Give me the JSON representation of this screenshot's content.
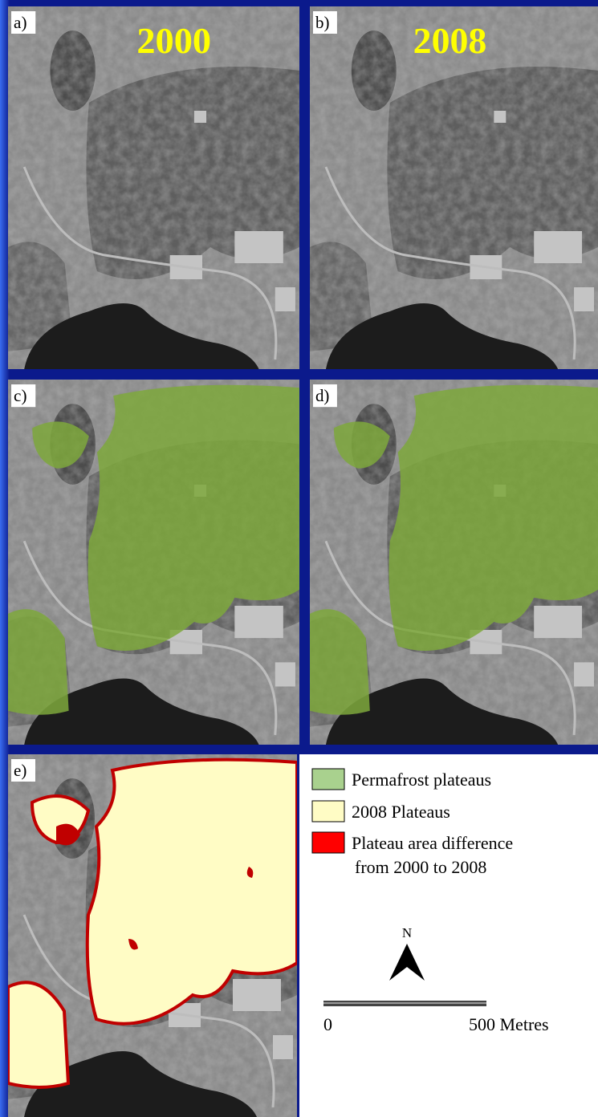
{
  "panels": [
    {
      "label": "a)",
      "year": "2000"
    },
    {
      "label": "b)",
      "year": "2008"
    },
    {
      "label": "c)"
    },
    {
      "label": "d)"
    },
    {
      "label": "e)"
    }
  ],
  "legend": {
    "items": [
      {
        "label": "Permafrost plateaus",
        "color": "#a9d18e"
      },
      {
        "label": "2008 Plateaus",
        "color": "#fffcc5"
      },
      {
        "label": "Plateau area difference",
        "label_2": "from 2000 to 2008",
        "color": "#ff0000"
      }
    ]
  },
  "north_arrow": "N",
  "scale_bar": {
    "start": "0",
    "end": "500 Metres"
  }
}
